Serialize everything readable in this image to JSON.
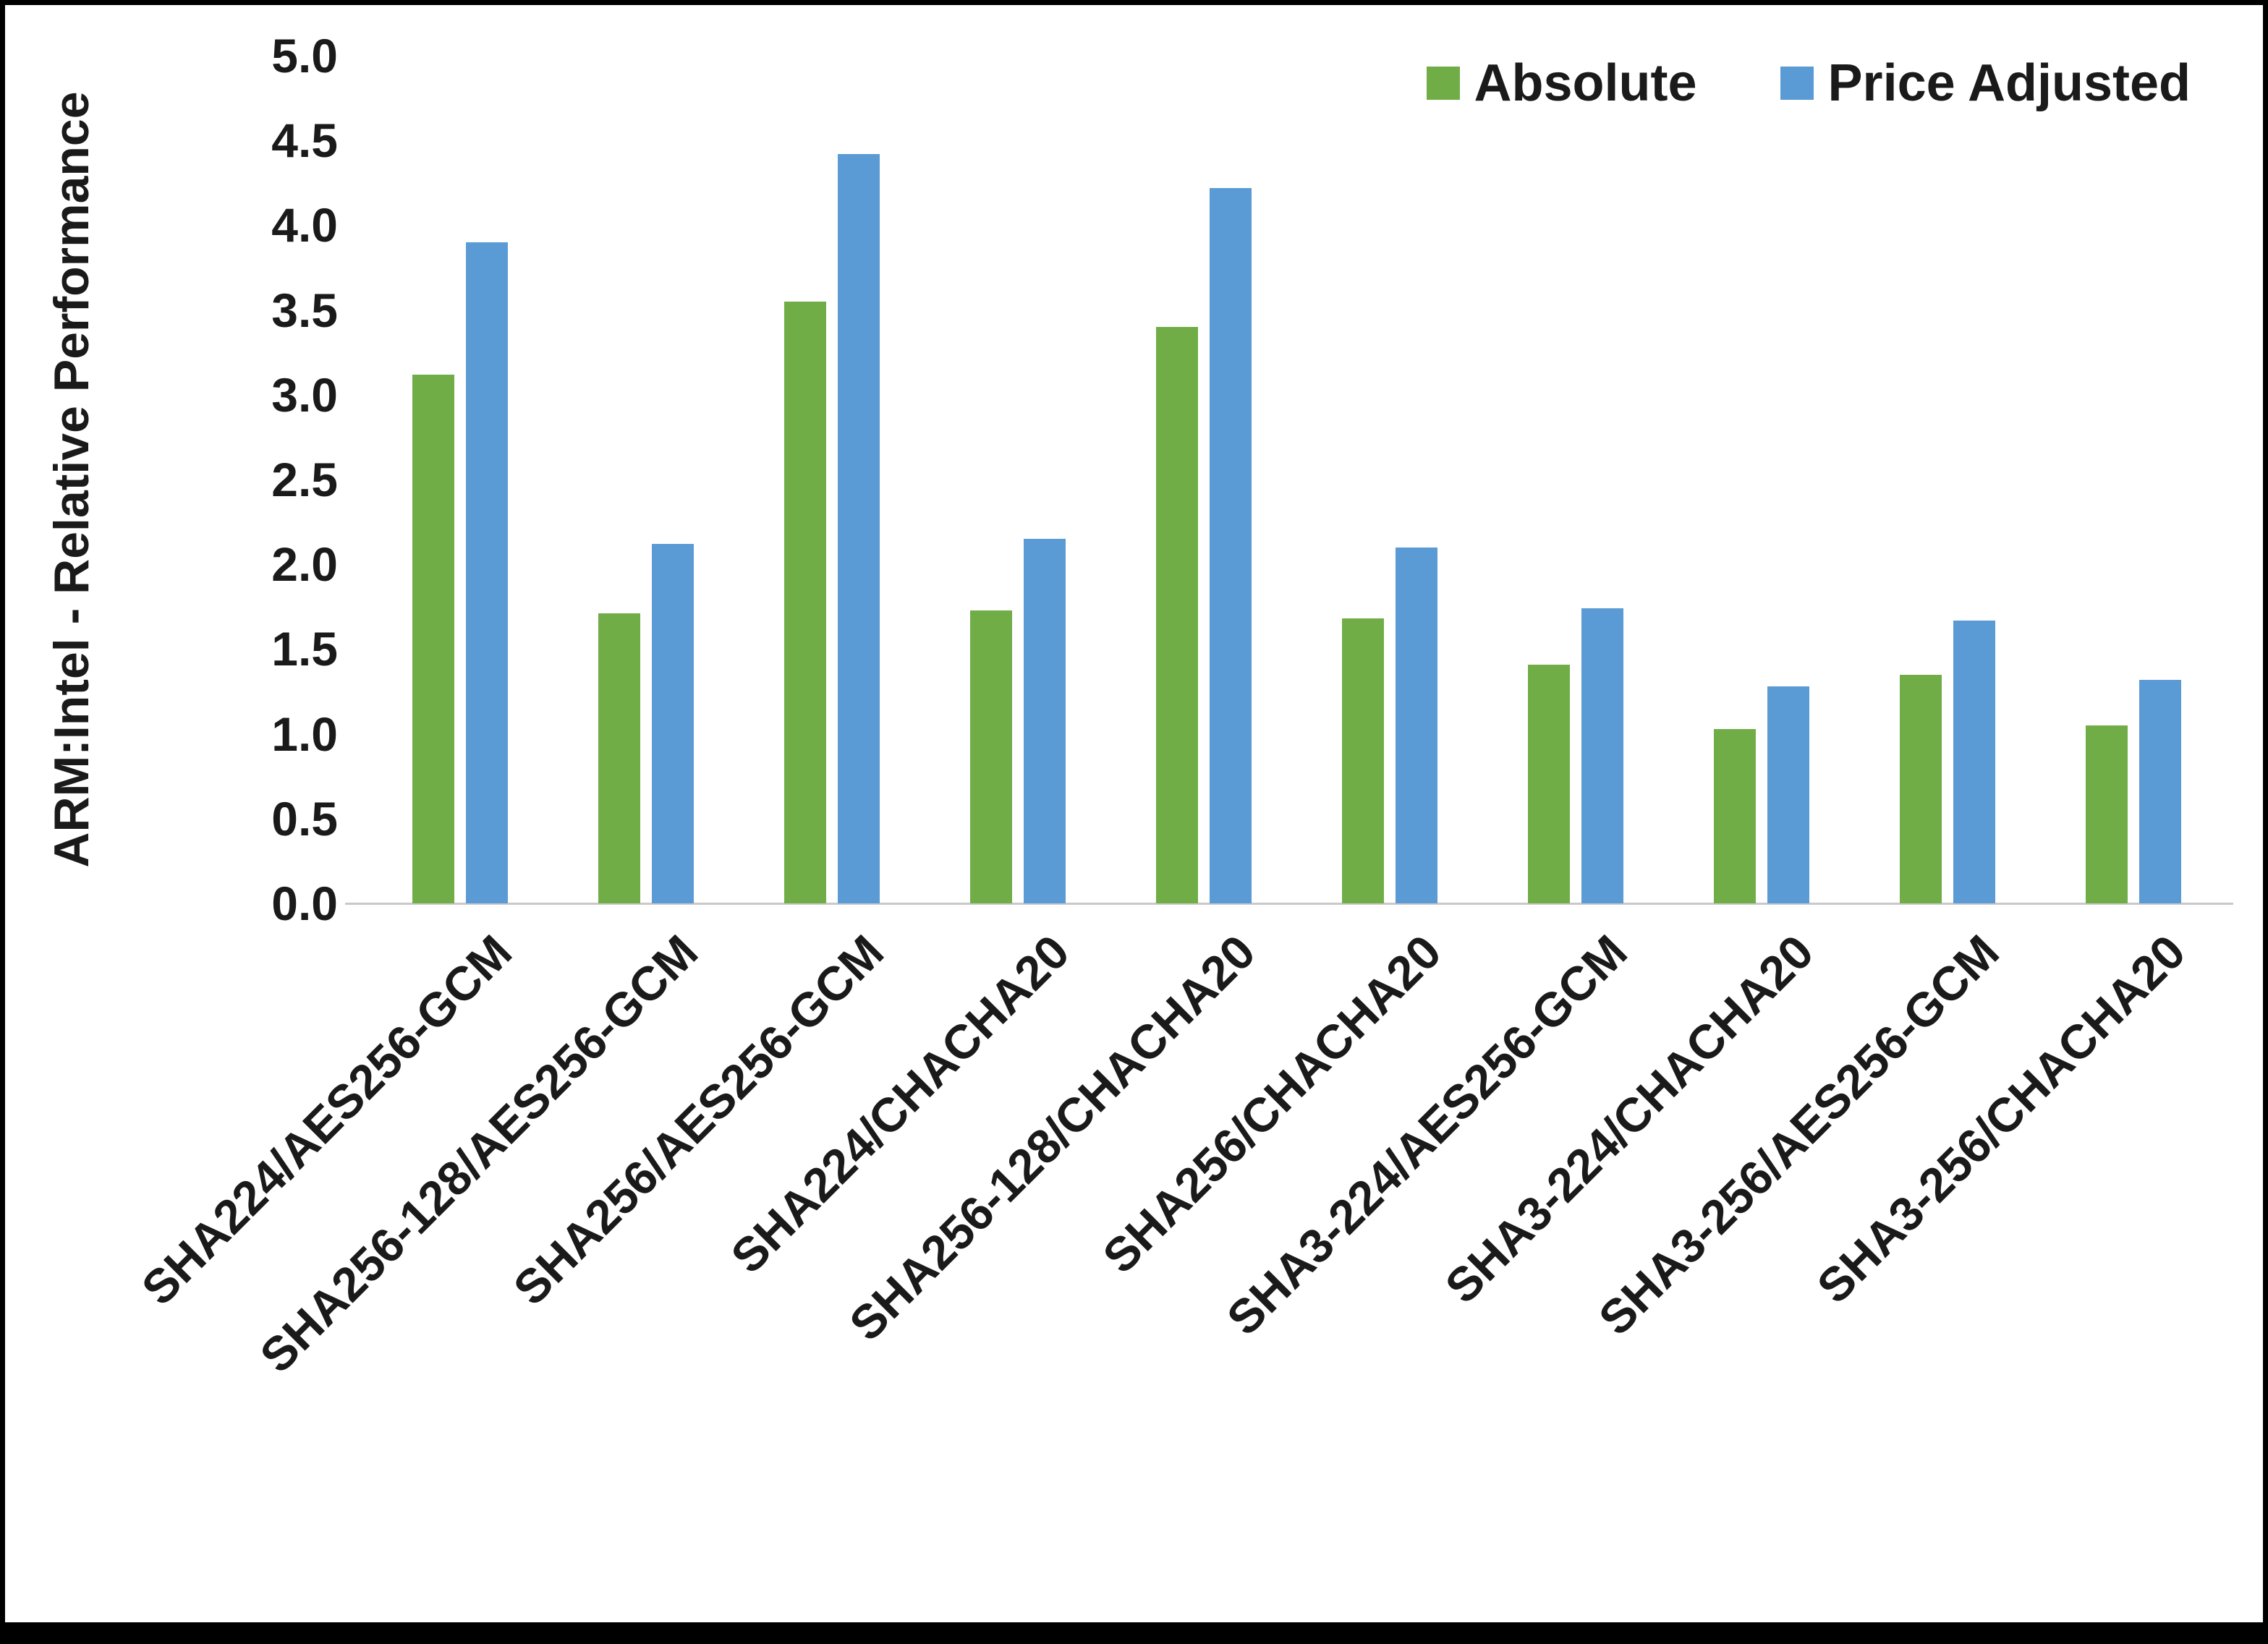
{
  "chart_data": {
    "type": "bar",
    "title": "",
    "xlabel": "",
    "ylabel": "ARM:Intel - Relative Performance",
    "ylim": [
      0,
      5
    ],
    "ytick_step": 0.5,
    "yticks": [
      "0.0",
      "0.5",
      "1.0",
      "1.5",
      "2.0",
      "2.5",
      "3.0",
      "3.5",
      "4.0",
      "4.5",
      "5.0"
    ],
    "grid": false,
    "legend_position": "top-right",
    "categories": [
      "SHA224/AES256-GCM",
      "SHA256-128/AES256-GCM",
      "SHA256/AES256-GCM",
      "SHA224/CHACHA20",
      "SHA256-128/CHACHA20",
      "SHA256/CHACHA20",
      "SHA3-224/AES256-GCM",
      "SHA3-224/CHACHA20",
      "SHA3-256/AES256-GCM",
      "SHA3-256/CHACHA20"
    ],
    "series": [
      {
        "name": "Absolute",
        "color": "#70AD47",
        "values": [
          3.12,
          1.71,
          3.55,
          1.73,
          3.4,
          1.68,
          1.41,
          1.03,
          1.35,
          1.05
        ]
      },
      {
        "name": "Price Adjusted",
        "color": "#5B9BD5",
        "values": [
          3.9,
          2.12,
          4.42,
          2.15,
          4.22,
          2.1,
          1.74,
          1.28,
          1.67,
          1.32
        ]
      }
    ]
  }
}
